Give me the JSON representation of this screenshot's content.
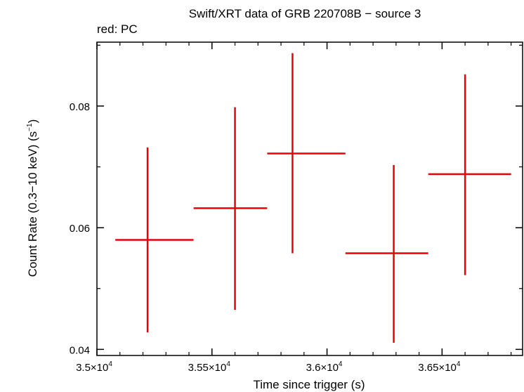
{
  "chart_data": {
    "type": "scatter",
    "title": "Swift/XRT data of GRB 220708B − source 3",
    "subtitle": "red: PC",
    "xlabel": "Time since trigger (s)",
    "ylabel": "Count Rate (0.3−10 keV) (s",
    "ylabel_sup": "−1",
    "ylabel_end": ")",
    "xlim": [
      35000,
      36850
    ],
    "ylim": [
      0.039,
      0.0905
    ],
    "x_log": false,
    "y_log": false,
    "grid": false,
    "series_color": "#e8000b",
    "x_ticks": [
      {
        "value": 35000,
        "mantissa": "3.5×10",
        "exp": "4"
      },
      {
        "value": 35500,
        "mantissa": "3.55×10",
        "exp": "4"
      },
      {
        "value": 36000,
        "mantissa": "3.6×10",
        "exp": "4"
      },
      {
        "value": 36500,
        "mantissa": "3.65×10",
        "exp": "4"
      }
    ],
    "y_ticks": [
      {
        "value": 0.04,
        "label": "0.04"
      },
      {
        "value": 0.06,
        "label": "0.06"
      },
      {
        "value": 0.08,
        "label": "0.08"
      }
    ],
    "points": [
      {
        "x": 35220,
        "x_lo": 35080,
        "x_hi": 35420,
        "y": 0.058,
        "y_lo": 0.0428,
        "y_hi": 0.0732
      },
      {
        "x": 35600,
        "x_lo": 35420,
        "x_hi": 35740,
        "y": 0.0632,
        "y_lo": 0.0465,
        "y_hi": 0.0798
      },
      {
        "x": 35850,
        "x_lo": 35740,
        "x_hi": 36080,
        "y": 0.0722,
        "y_lo": 0.0558,
        "y_hi": 0.0887
      },
      {
        "x": 36290,
        "x_lo": 36080,
        "x_hi": 36440,
        "y": 0.0558,
        "y_lo": 0.0411,
        "y_hi": 0.0703
      },
      {
        "x": 36600,
        "x_lo": 36440,
        "x_hi": 36800,
        "y": 0.0688,
        "y_lo": 0.0522,
        "y_hi": 0.0852
      }
    ]
  }
}
